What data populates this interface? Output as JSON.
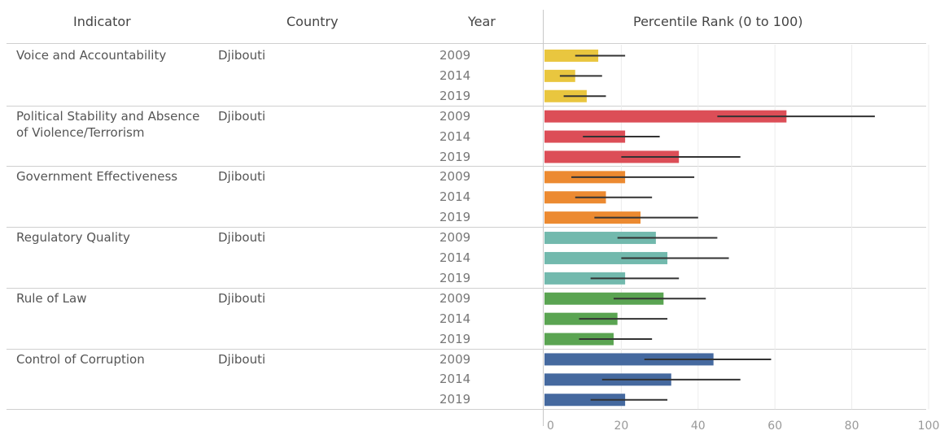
{
  "table": {
    "headers": {
      "indicator": "Indicator",
      "country": "Country",
      "year": "Year",
      "value": "Percentile Rank (0 to 100)"
    }
  },
  "colors": {
    "voice": "#e9c63f",
    "stability": "#dc4e57",
    "effectiveness": "#ec8a31",
    "regulatory": "#72b9ad",
    "law": "#5aa452",
    "corruption": "#45699f"
  },
  "chart_data": {
    "type": "bar",
    "orientation": "horizontal",
    "xlim": [
      0,
      100
    ],
    "xticks": [
      0,
      20,
      40,
      60,
      80,
      100
    ],
    "xtick_labels": [
      "0",
      "20",
      "40",
      "60",
      "80",
      "100"
    ],
    "grid": true,
    "groups": [
      {
        "indicator": "Voice and Accountability",
        "country": "Djibouti",
        "color_key": "voice",
        "rows": [
          {
            "year": "2009",
            "value": 14,
            "ci": [
              8,
              21
            ]
          },
          {
            "year": "2014",
            "value": 8,
            "ci": [
              4,
              15
            ]
          },
          {
            "year": "2019",
            "value": 11,
            "ci": [
              5,
              16
            ]
          }
        ]
      },
      {
        "indicator": "Political Stability and Absence of Violence/Terrorism",
        "country": "Djibouti",
        "color_key": "stability",
        "rows": [
          {
            "year": "2009",
            "value": 63,
            "ci": [
              45,
              86
            ]
          },
          {
            "year": "2014",
            "value": 21,
            "ci": [
              10,
              30
            ]
          },
          {
            "year": "2019",
            "value": 35,
            "ci": [
              20,
              51
            ]
          }
        ]
      },
      {
        "indicator": "Government Effectiveness",
        "country": "Djibouti",
        "color_key": "effectiveness",
        "rows": [
          {
            "year": "2009",
            "value": 21,
            "ci": [
              7,
              39
            ]
          },
          {
            "year": "2014",
            "value": 16,
            "ci": [
              8,
              28
            ]
          },
          {
            "year": "2019",
            "value": 25,
            "ci": [
              13,
              40
            ]
          }
        ]
      },
      {
        "indicator": "Regulatory Quality",
        "country": "Djibouti",
        "color_key": "regulatory",
        "rows": [
          {
            "year": "2009",
            "value": 29,
            "ci": [
              19,
              45
            ]
          },
          {
            "year": "2014",
            "value": 32,
            "ci": [
              20,
              48
            ]
          },
          {
            "year": "2019",
            "value": 21,
            "ci": [
              12,
              35
            ]
          }
        ]
      },
      {
        "indicator": "Rule of Law",
        "country": "Djibouti",
        "color_key": "law",
        "rows": [
          {
            "year": "2009",
            "value": 31,
            "ci": [
              18,
              42
            ]
          },
          {
            "year": "2014",
            "value": 19,
            "ci": [
              9,
              32
            ]
          },
          {
            "year": "2019",
            "value": 18,
            "ci": [
              9,
              28
            ]
          }
        ]
      },
      {
        "indicator": "Control of Corruption",
        "country": "Djibouti",
        "color_key": "corruption",
        "rows": [
          {
            "year": "2009",
            "value": 44,
            "ci": [
              26,
              59
            ]
          },
          {
            "year": "2014",
            "value": 33,
            "ci": [
              15,
              51
            ]
          },
          {
            "year": "2019",
            "value": 21,
            "ci": [
              12,
              32
            ]
          }
        ]
      }
    ]
  }
}
